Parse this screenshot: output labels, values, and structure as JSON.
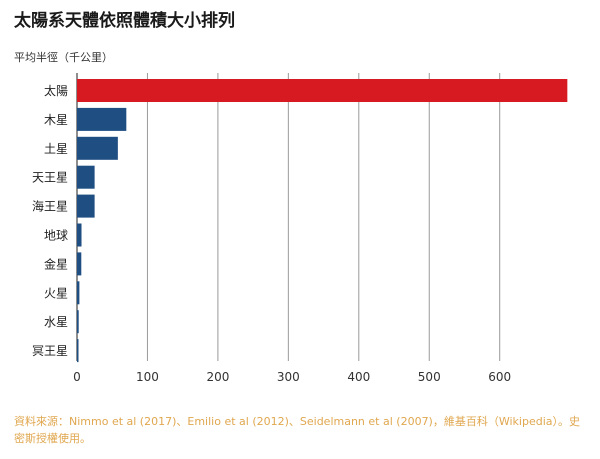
{
  "chart_data": {
    "type": "bar",
    "orientation": "horizontal",
    "title": "太陽系天體依照體積大小排列",
    "ylabel": "平均半徑（千公里）",
    "categories": [
      "太陽",
      "木星",
      "土星",
      "天王星",
      "海王星",
      "地球",
      "金星",
      "火星",
      "水星",
      "冥王星"
    ],
    "values": [
      696,
      70,
      58,
      25,
      25,
      6.4,
      6.1,
      3.4,
      2.4,
      1.2
    ],
    "colors": [
      "#d71a21",
      "#1f4e82",
      "#1f4e82",
      "#1f4e82",
      "#1f4e82",
      "#1f4e82",
      "#1f4e82",
      "#1f4e82",
      "#1f4e82",
      "#1f4e82"
    ],
    "xlim": [
      0,
      696
    ],
    "xticks": [
      0,
      100,
      200,
      300,
      400,
      500,
      600
    ],
    "grid": true,
    "legend": "none"
  },
  "source": "資料來源：Nimmo et al (2017)、Emilio et al (2012)、Seidelmann et al (2007)，維基百科（Wikipedia）。史密斯授權使用。"
}
